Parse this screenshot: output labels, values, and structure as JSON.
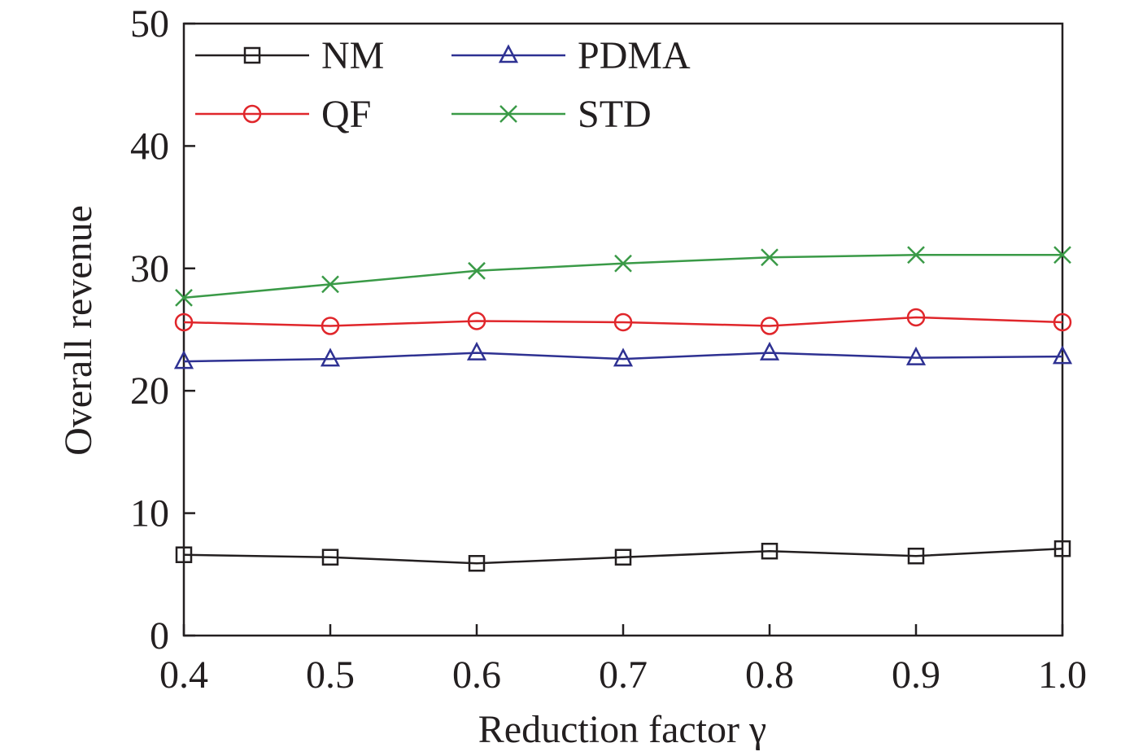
{
  "chart_data": {
    "type": "line",
    "xlabel": "Reduction factor γ",
    "ylabel": "Overall revenue",
    "xlim": [
      0.4,
      1.0
    ],
    "ylim": [
      0,
      50
    ],
    "x": [
      0.4,
      0.5,
      0.6,
      0.7,
      0.8,
      0.9,
      1.0
    ],
    "x_tick_labels": [
      "0.4",
      "0.5",
      "0.6",
      "0.7",
      "0.8",
      "0.9",
      "1.0"
    ],
    "y_ticks": [
      0,
      10,
      20,
      30,
      40,
      50
    ],
    "y_tick_labels": [
      "0",
      "10",
      "20",
      "30",
      "40",
      "50"
    ],
    "grid": false,
    "legend_position": "top-left",
    "series": [
      {
        "name": "NM",
        "marker": "square",
        "color": "#231f20",
        "values": [
          6.6,
          6.4,
          5.9,
          6.4,
          6.9,
          6.5,
          7.1
        ]
      },
      {
        "name": "QF",
        "marker": "circle",
        "color": "#e0262b",
        "values": [
          25.6,
          25.3,
          25.7,
          25.6,
          25.3,
          26.0,
          25.6
        ]
      },
      {
        "name": "PDMA",
        "marker": "triangle",
        "color": "#2e3192",
        "values": [
          22.4,
          22.6,
          23.1,
          22.6,
          23.1,
          22.7,
          22.8
        ]
      },
      {
        "name": "STD",
        "marker": "x",
        "color": "#3a9a47",
        "values": [
          27.6,
          28.7,
          29.8,
          30.4,
          30.9,
          31.1,
          31.1
        ]
      }
    ]
  }
}
